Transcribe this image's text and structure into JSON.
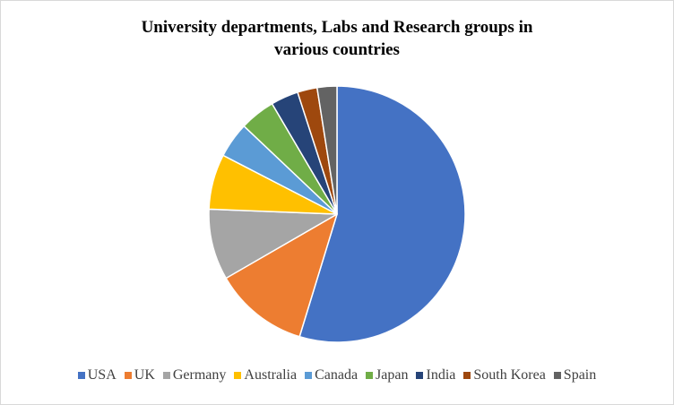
{
  "chart_data": {
    "type": "pie",
    "title_lines": [
      "University  departments, Labs and Research groups in",
      "various countries"
    ],
    "legend_position": "bottom",
    "slices": [
      {
        "label": "USA",
        "value": 55,
        "color": "#4472C4"
      },
      {
        "label": "UK",
        "value": 12,
        "color": "#ED7D31"
      },
      {
        "label": "Germany",
        "value": 9,
        "color": "#A5A5A5"
      },
      {
        "label": "Australia",
        "value": 7,
        "color": "#FFC000"
      },
      {
        "label": "Canada",
        "value": 4.5,
        "color": "#5B9BD5"
      },
      {
        "label": "Japan",
        "value": 4.5,
        "color": "#70AD47"
      },
      {
        "label": "India",
        "value": 3.5,
        "color": "#264478"
      },
      {
        "label": "South Korea",
        "value": 2.5,
        "color": "#9E480E"
      },
      {
        "label": "Spain",
        "value": 2.5,
        "color": "#636363"
      }
    ]
  }
}
